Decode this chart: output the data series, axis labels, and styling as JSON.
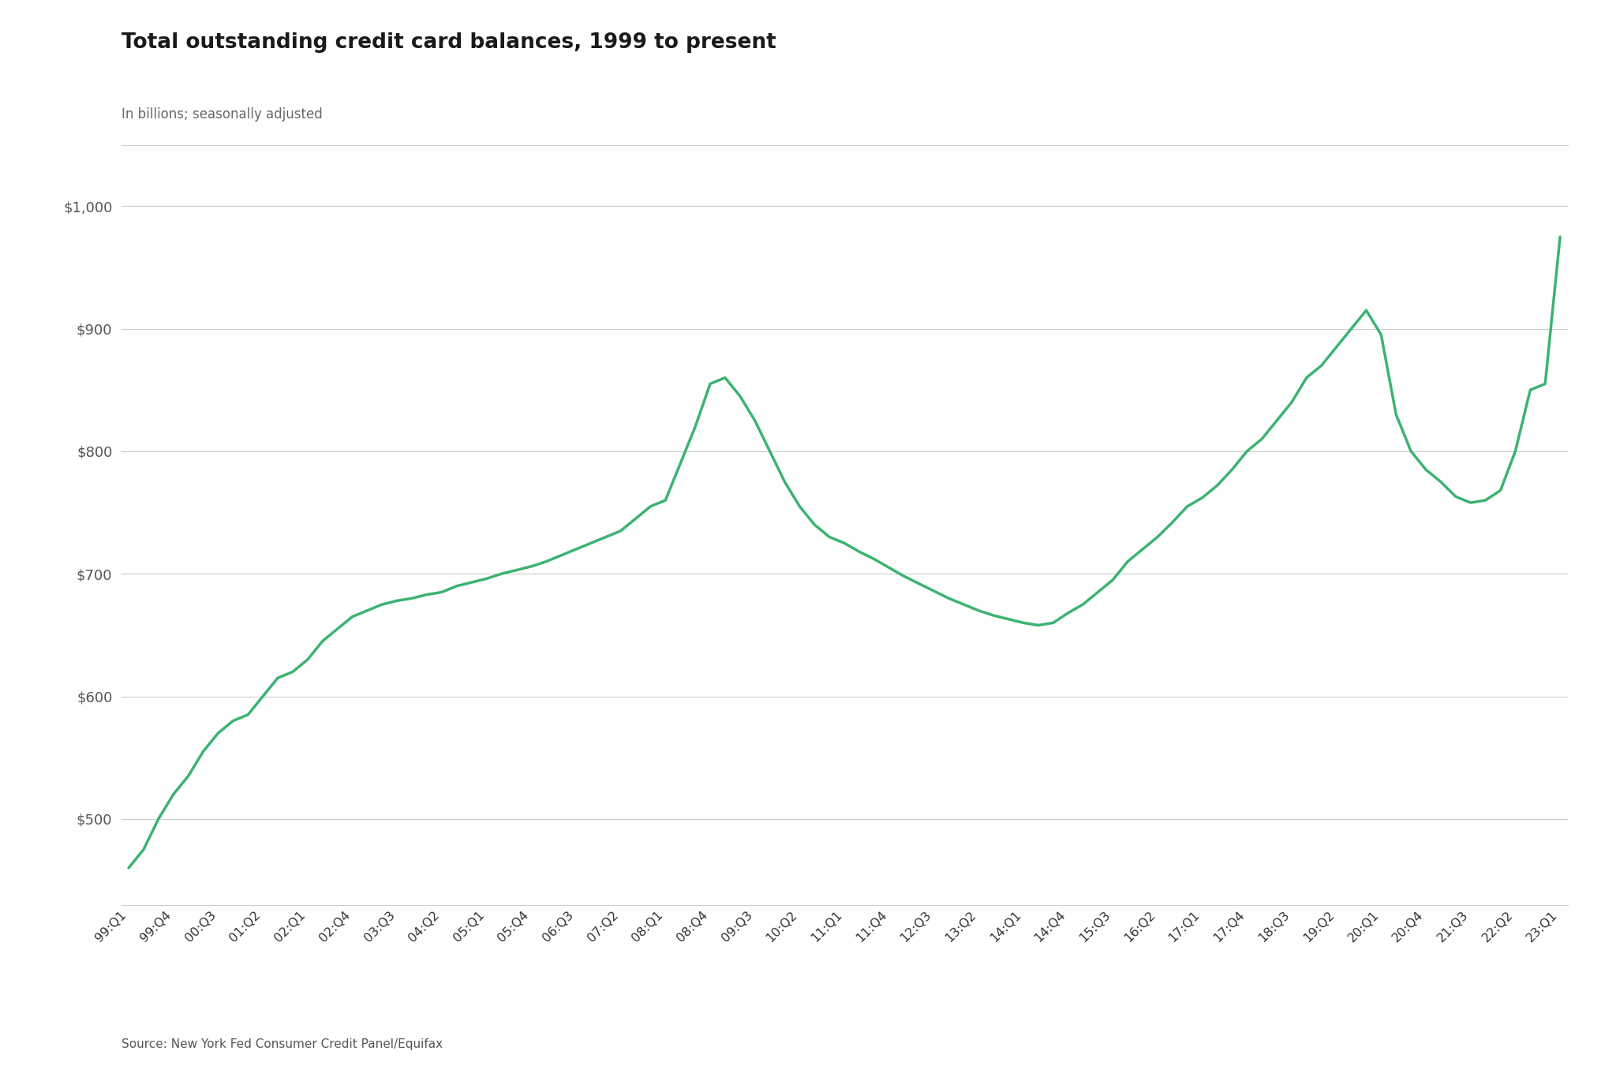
{
  "title": "Total outstanding credit card balances, 1999 to present",
  "subtitle": "In billions; seasonally adjusted",
  "source": "Source: New York Fed Consumer Credit Panel/Equifax",
  "line_color": "#3cb371",
  "background_color": "#ffffff",
  "grid_color": "#cccccc",
  "title_fontsize": 19,
  "subtitle_fontsize": 12,
  "source_fontsize": 11,
  "tick_labels": [
    "99:Q1",
    "99:Q4",
    "00:Q3",
    "01:Q2",
    "02:Q1",
    "02:Q4",
    "03:Q3",
    "04:Q2",
    "05:Q1",
    "05:Q4",
    "06:Q3",
    "07:Q2",
    "08:Q1",
    "08:Q4",
    "09:Q3",
    "10:Q2",
    "11:Q1",
    "11:Q4",
    "12:Q3",
    "13:Q2",
    "14:Q1",
    "14:Q4",
    "15:Q3",
    "16:Q2",
    "17:Q1",
    "17:Q4",
    "18:Q3",
    "19:Q2",
    "20:Q1",
    "20:Q4",
    "21:Q3",
    "22:Q2",
    "23:Q1"
  ],
  "values_data": [
    460,
    475,
    500,
    520,
    535,
    555,
    570,
    580,
    585,
    600,
    615,
    620,
    630,
    645,
    655,
    665,
    670,
    675,
    678,
    680,
    683,
    685,
    690,
    693,
    696,
    700,
    703,
    706,
    710,
    715,
    720,
    725,
    730,
    735,
    745,
    755,
    760,
    790,
    820,
    855,
    860,
    845,
    825,
    800,
    775,
    755,
    740,
    730,
    725,
    718,
    712,
    705,
    698,
    692,
    686,
    680,
    675,
    670,
    666,
    663,
    660,
    658,
    660,
    668,
    675,
    685,
    695,
    710,
    720,
    730,
    742,
    755,
    762,
    772,
    785,
    800,
    810,
    825,
    840,
    860,
    870,
    885,
    900,
    915,
    895,
    830,
    800,
    785,
    775,
    763,
    758,
    760,
    768,
    800,
    850,
    855,
    975
  ],
  "ylim": [
    430,
    1010
  ],
  "yticks": [
    500,
    600,
    700,
    800,
    900,
    1000
  ]
}
